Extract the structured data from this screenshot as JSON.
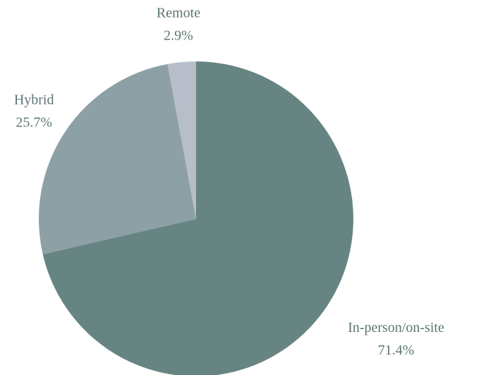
{
  "chart_data": {
    "type": "pie",
    "categories": [
      "In-person/on-site",
      "Hybrid",
      "Remote"
    ],
    "values": [
      71.4,
      25.7,
      2.9
    ],
    "value_labels": [
      "71.4%",
      "25.7%",
      "2.9%"
    ],
    "colors": [
      "#668482",
      "#8da0a6",
      "#b8bec9"
    ],
    "start_angle": 0,
    "direction": "clockwise"
  }
}
